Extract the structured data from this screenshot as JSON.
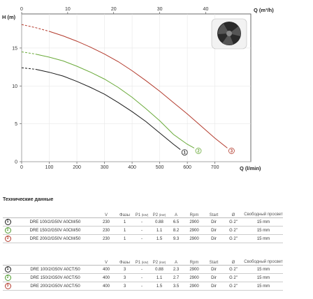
{
  "chart_data": {
    "type": "line",
    "x_top_label": "Q (m³/h)",
    "x_bottom_label": "Q (l/min)",
    "y_label": "H (m)",
    "x_top_ticks": [
      "0",
      "10",
      "20",
      "30",
      "40"
    ],
    "x_bottom_ticks": [
      "0",
      "100",
      "200",
      "300",
      "400",
      "500",
      "600",
      "700"
    ],
    "y_ticks": [
      "0",
      "5",
      "10",
      "15"
    ],
    "xlim": [
      0,
      830
    ],
    "ylim": [
      0,
      19.5
    ],
    "series": [
      {
        "name": "1",
        "color": "#1a1a1a",
        "x": [
          0,
          50,
          100,
          150,
          200,
          250,
          300,
          350,
          400,
          450,
          500,
          550,
          575
        ],
        "y": [
          12.4,
          12.2,
          11.8,
          11.3,
          10.6,
          9.8,
          8.9,
          7.8,
          6.6,
          5.3,
          3.8,
          2.3,
          1.6
        ],
        "dashed_until": 50,
        "end_label": "1"
      },
      {
        "name": "2",
        "color": "#6aaa3a",
        "x": [
          0,
          50,
          100,
          150,
          200,
          250,
          300,
          350,
          400,
          450,
          500,
          550,
          600,
          625
        ],
        "y": [
          14.5,
          14.2,
          13.8,
          13.3,
          12.6,
          11.8,
          10.9,
          9.8,
          8.5,
          7.0,
          5.4,
          3.6,
          2.3,
          1.8
        ],
        "dashed_until": 70,
        "end_label": "2"
      },
      {
        "name": "3",
        "color": "#b33a2c",
        "x": [
          0,
          50,
          100,
          150,
          200,
          250,
          300,
          350,
          400,
          450,
          500,
          550,
          600,
          650,
          700,
          745
        ],
        "y": [
          18.1,
          17.7,
          17.2,
          16.6,
          15.9,
          15.1,
          14.2,
          13.2,
          12.0,
          10.7,
          9.3,
          7.8,
          6.3,
          4.7,
          3.1,
          1.8
        ],
        "dashed_until": 100,
        "end_label": "3"
      }
    ]
  },
  "specs": {
    "title": "Технические данные",
    "headers": [
      "V",
      "Фазы",
      "P1",
      "(kW)",
      "P2",
      "(kW)",
      "A",
      "Rpm",
      "Start",
      "Ø",
      "Свободный просвет"
    ],
    "table1": [
      {
        "idx": "1",
        "model": "DRE 100/2/G50V A0CM/50",
        "v": "230",
        "phase": "1",
        "p1": "-",
        "p2": "0.88",
        "a": "6.5",
        "rpm": "2900",
        "start": "Dir",
        "d": "G 2\"",
        "free": "15 mm"
      },
      {
        "idx": "2",
        "model": "DRE 150/2/G50V A0CM/50",
        "v": "230",
        "phase": "1",
        "p1": "-",
        "p2": "1.1",
        "a": "8.2",
        "rpm": "2900",
        "start": "Dir",
        "d": "G 2\"",
        "free": "15 mm"
      },
      {
        "idx": "3",
        "model": "DRE 200/2/G50V A0CM/50",
        "v": "230",
        "phase": "1",
        "p1": "-",
        "p2": "1.5",
        "a": "9.3",
        "rpm": "2900",
        "start": "Dir",
        "d": "G 2\"",
        "free": "15 mm"
      }
    ],
    "table2": [
      {
        "idx": "1",
        "model": "DRE 100/2/G50V A0CT/50",
        "v": "400",
        "phase": "3",
        "p1": "-",
        "p2": "0.88",
        "a": "2.3",
        "rpm": "2900",
        "start": "Dir",
        "d": "G 2\"",
        "free": "15 mm"
      },
      {
        "idx": "2",
        "model": "DRE 150/2/G50V A0CT/50",
        "v": "400",
        "phase": "3",
        "p1": "-",
        "p2": "1.1",
        "a": "2.7",
        "rpm": "2900",
        "start": "Dir",
        "d": "G 2\"",
        "free": "15 mm"
      },
      {
        "idx": "3",
        "model": "DRE 200/2/G50V A0CT/50",
        "v": "400",
        "phase": "3",
        "p1": "-",
        "p2": "1.5",
        "a": "3.5",
        "rpm": "2900",
        "start": "Dir",
        "d": "G 2\"",
        "free": "15 mm"
      }
    ]
  }
}
